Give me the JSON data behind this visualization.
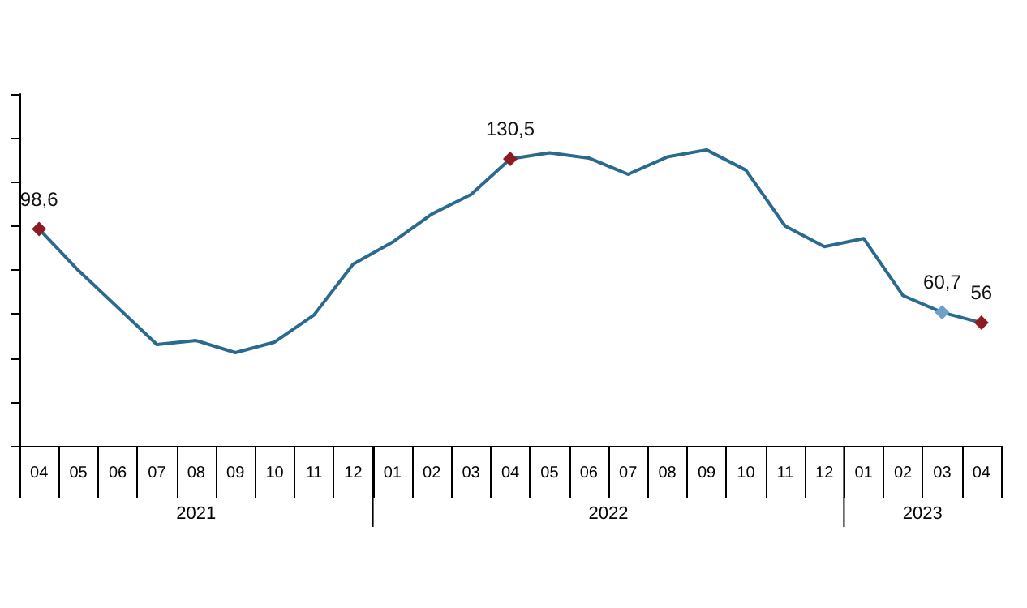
{
  "chart_data": {
    "type": "line",
    "categories": [
      "04",
      "05",
      "06",
      "07",
      "08",
      "09",
      "10",
      "11",
      "12",
      "01",
      "02",
      "03",
      "04",
      "05",
      "06",
      "07",
      "08",
      "09",
      "10",
      "11",
      "12",
      "01",
      "02",
      "03",
      "04"
    ],
    "annotations": [
      "2021",
      "2022",
      "2023"
    ],
    "series": [
      {
        "color": "#2a6a8e",
        "marker": "none",
        "values": [
          98.6,
          79.8,
          63.0,
          46.1,
          47.9,
          42.4,
          47.2,
          59.5,
          82.7,
          92.6,
          105.4,
          114.3,
          130.5,
          133.3,
          130.9,
          123.5,
          131.4,
          134.6,
          125.4,
          100.0,
          90.6,
          94.3,
          68.4,
          60.7,
          56
        ],
        "colors": [
          "#8b1c24",
          null,
          null,
          null,
          null,
          null,
          null,
          null,
          null,
          null,
          null,
          null,
          "#8b1c24",
          null,
          null,
          null,
          null,
          null,
          null,
          null,
          null,
          null,
          null,
          "#6fa0c8",
          "#8b1c24"
        ],
        "value_labels": [
          "98,6",
          null,
          null,
          null,
          null,
          null,
          null,
          null,
          null,
          null,
          null,
          null,
          "130,5",
          null,
          null,
          null,
          null,
          null,
          null,
          null,
          null,
          null,
          null,
          "60,7",
          "56"
        ]
      }
    ],
    "ylim": [
      0,
      160
    ],
    "yticks": [
      {
        "value": 0,
        "label": null
      },
      {
        "value": 20,
        "label": null
      },
      {
        "value": 40,
        "label": null
      },
      {
        "value": 60,
        "label": null
      },
      {
        "value": 80,
        "label": null
      },
      {
        "value": 100,
        "label": null
      },
      {
        "value": 120,
        "label": null
      },
      {
        "value": 140,
        "label": null
      },
      {
        "value": 160,
        "label": null
      }
    ],
    "grid": false,
    "line_style": "solid"
  }
}
